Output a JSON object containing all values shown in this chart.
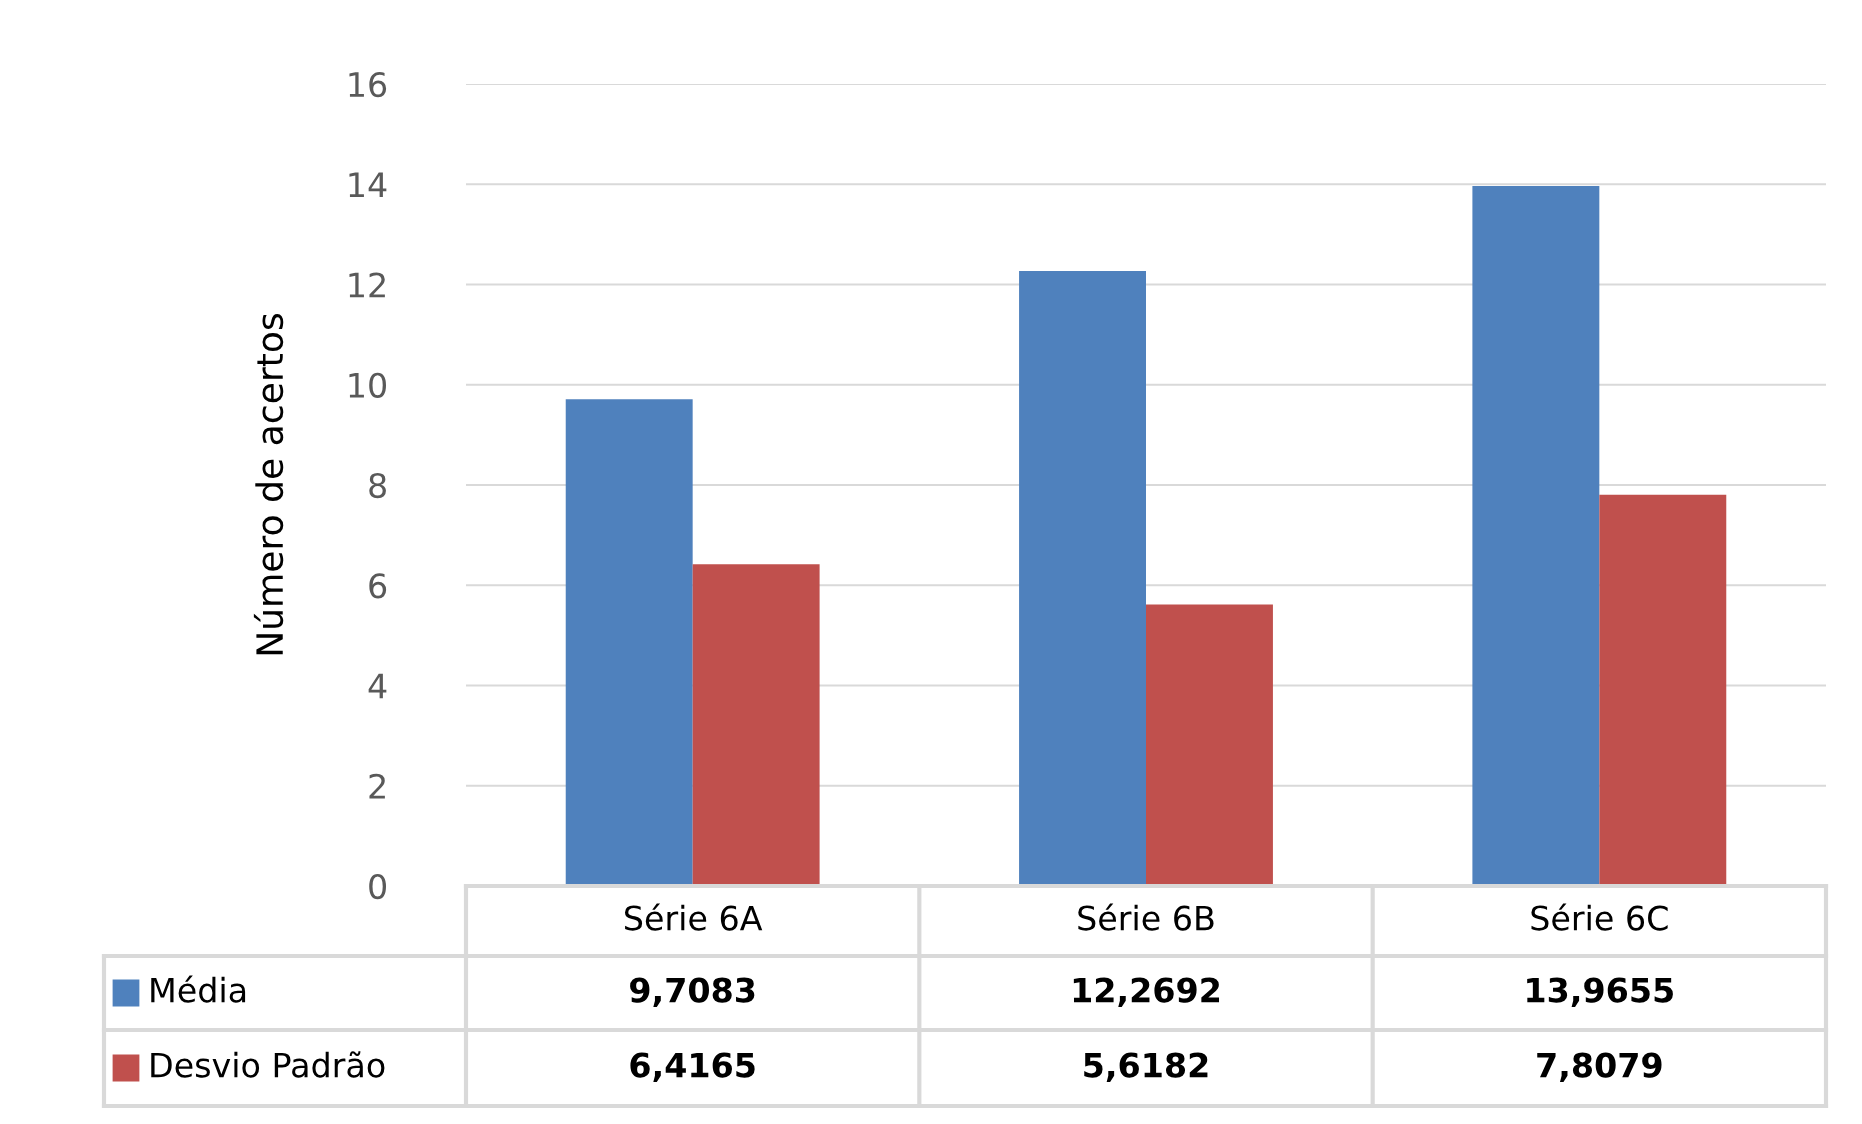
{
  "chart_data": {
    "type": "bar",
    "ylabel": "Número de acertos",
    "categories": [
      "Série 6A",
      "Série 6B",
      "Série 6C"
    ],
    "series": [
      {
        "name": "Média",
        "color": "#4f81bd",
        "values": [
          9.7083,
          12.2692,
          13.9655
        ],
        "value_labels": [
          "9,7083",
          "12,2692",
          "13,9655"
        ]
      },
      {
        "name": "Desvio Padrão",
        "color": "#c0504d",
        "values": [
          6.4165,
          5.6182,
          7.8079
        ],
        "value_labels": [
          "6,4165",
          "5,6182",
          "7,8079"
        ]
      }
    ],
    "ylim": [
      0,
      16
    ],
    "yticks": [
      0,
      2,
      4,
      6,
      8,
      10,
      12,
      14,
      16
    ],
    "grid": "y",
    "legend": "bottom left",
    "data_labels": true
  }
}
